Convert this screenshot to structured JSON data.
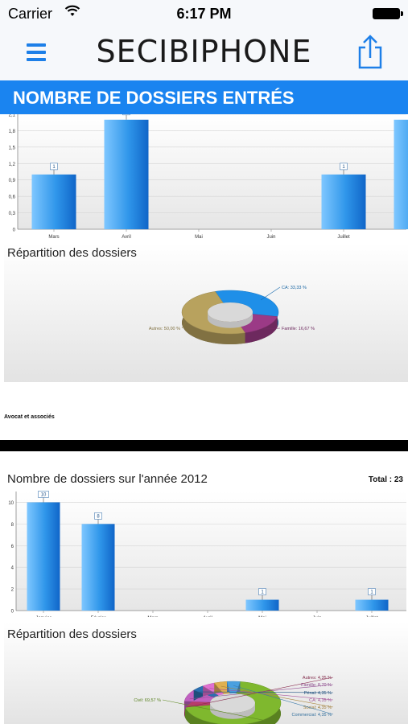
{
  "status_bar": {
    "carrier": "Carrier",
    "time": "6:17 PM"
  },
  "nav": {
    "title_bold": "SECIB",
    "title_light": "IPHONE"
  },
  "section": {
    "title": "NOMBRE DE DOSSIERS ENTRÉS"
  },
  "report1": {
    "pie_title": "Répartition des dossiers",
    "firm_name": "Avocat et associés"
  },
  "report2": {
    "bar_title": "Nombre de dossiers sur l'année 2012",
    "total_label": "Total : 23",
    "pie_title": "Répartition des dossiers"
  },
  "chart_data": [
    {
      "type": "bar",
      "categories": [
        "Mars",
        "Avril",
        "Mai",
        "Juin",
        "Juillet",
        ""
      ],
      "values": [
        1,
        2,
        0,
        0,
        1,
        2
      ],
      "data_labels": [
        "1",
        "2",
        "",
        "",
        "1",
        ""
      ],
      "yticks": [
        "0",
        "0,3",
        "0,6",
        "0,9",
        "1,2",
        "1,5",
        "1,8",
        "2,1"
      ],
      "ylim": [
        0,
        2.1
      ],
      "grid": true
    },
    {
      "type": "pie",
      "title": "Répartition des dossiers",
      "slices": [
        {
          "label": "CA: 33,33 %",
          "value": 33.33,
          "color": "#1f8fe8"
        },
        {
          "label": "Famille: 16,67 %",
          "value": 16.67,
          "color": "#9b3a86"
        },
        {
          "label": "Autres: 50,00 %",
          "value": 50.0,
          "color": "#b8a25e"
        }
      ]
    },
    {
      "type": "bar",
      "title": "Nombre de dossiers sur l'année 2012",
      "categories": [
        "Janvier",
        "Février",
        "Mars",
        "Avril",
        "Mai",
        "Juin",
        "Juillet"
      ],
      "values": [
        10,
        8,
        0,
        0,
        1,
        0,
        1
      ],
      "data_labels": [
        "10",
        "8",
        "",
        "",
        "1",
        "",
        "1"
      ],
      "yticks": [
        "0",
        "2",
        "4",
        "6",
        "8",
        "10"
      ],
      "ylim": [
        0,
        11
      ],
      "grid": true
    },
    {
      "type": "pie",
      "title": "Répartition des dossiers",
      "slices": [
        {
          "label": "Civil: 69,57 %",
          "value": 69.57,
          "color": "#7fb82e"
        },
        {
          "label": "Autres: 4,35 %",
          "value": 4.35,
          "color": "#b83c6a"
        },
        {
          "label": "Famille: 8,70 %",
          "value": 8.7,
          "color": "#c060c0"
        },
        {
          "label": "Pénal: 4,35 %",
          "value": 4.35,
          "color": "#2a6fb0"
        },
        {
          "label": "CA: 4,35 %",
          "value": 4.35,
          "color": "#e070d0"
        },
        {
          "label": "Social: 4,35 %",
          "value": 4.35,
          "color": "#e0b050"
        },
        {
          "label": "Commercial: 4,35 %",
          "value": 4.35,
          "color": "#4aa0e0"
        }
      ]
    }
  ]
}
